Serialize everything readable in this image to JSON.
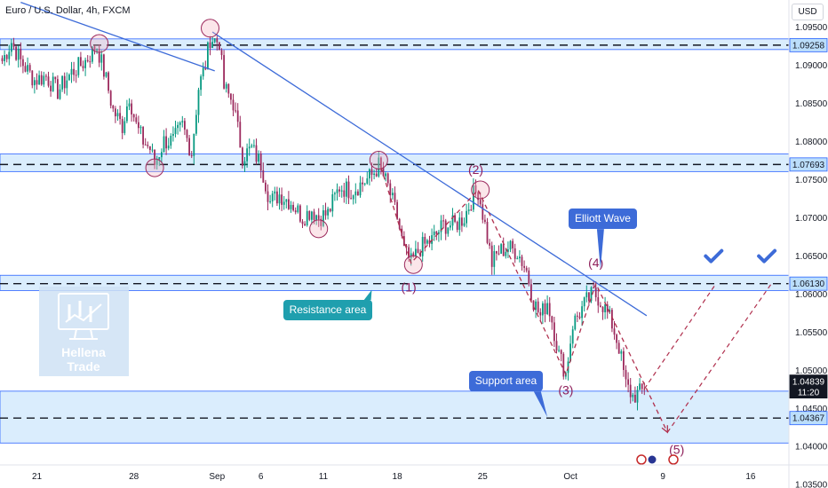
{
  "header": {
    "title": "Euro / U.S. Dollar, 4h, FXCM",
    "currency_button": "USD"
  },
  "watermark": {
    "line1": "Hellena",
    "line2": "Trade"
  },
  "colors": {
    "up": "#089981",
    "down": "#9c2a5d",
    "zone_fill": "#bbdefb",
    "zone_border": "#2962ff",
    "trendline": "#3d6bd8",
    "wave_path": "#b0304e",
    "wave_label": "#8e1f5a",
    "callout_bg_resistance": "#1f9fae",
    "callout_bg_wave": "#3d6bd8",
    "callout_bg_support": "#3d6bd8",
    "checkmark": "#3d6bd8",
    "price_tag_current": "#131722"
  },
  "annotations": {
    "resistance_label": "Resistance area",
    "support_label": "Support area",
    "elliott_label": "Elliott Wave",
    "waves": [
      "(1)",
      "(2)",
      "(3)",
      "(4)",
      "(5)"
    ]
  },
  "chart_data": {
    "type": "candlestick",
    "symbol": "Euro / U.S. Dollar",
    "timeframe": "4h",
    "source": "FXCM",
    "y_axis": {
      "range": [
        1.0345,
        1.0985
      ],
      "ticks": [
        "1.09500",
        "1.09000",
        "1.08500",
        "1.08000",
        "1.07500",
        "1.07000",
        "1.06500",
        "1.06000",
        "1.05500",
        "1.05000",
        "1.04500",
        "1.04000",
        "1.03500"
      ]
    },
    "x_axis": {
      "ticks": [
        {
          "label": "21",
          "bar": 15
        },
        {
          "label": "28",
          "bar": 57
        },
        {
          "label": "Sep",
          "bar": 93
        },
        {
          "label": "6",
          "bar": 112
        },
        {
          "label": "11",
          "bar": 139
        },
        {
          "label": "18",
          "bar": 171
        },
        {
          "label": "25",
          "bar": 208
        },
        {
          "label": "Oct",
          "bar": 246
        },
        {
          "label": "9",
          "bar": 286
        },
        {
          "label": "16",
          "bar": 324
        }
      ]
    },
    "price_tags": [
      {
        "label": "1.09258",
        "price": 1.09258
      },
      {
        "label": "1.07693",
        "price": 1.07693
      },
      {
        "label": "1.06130",
        "price": 1.0613
      },
      {
        "label": "1.04839",
        "sub": "11:20",
        "price": 1.04839,
        "current": true
      },
      {
        "label": "1.04367",
        "price": 1.04367
      }
    ],
    "zones": [
      {
        "low": 1.092,
        "high": 1.0934
      },
      {
        "low": 1.076,
        "high": 1.0783
      },
      {
        "low": 1.0604,
        "high": 1.0624
      },
      {
        "low": 1.0404,
        "high": 1.0472
      }
    ],
    "dashed_levels": [
      1.09258,
      1.07693,
      1.0613,
      1.04367
    ],
    "trendlines": [
      {
        "start": {
          "bar": 8,
          "price": 1.0982
        },
        "end": {
          "bar": 92,
          "price": 1.0892
        }
      },
      {
        "start": {
          "bar": 91,
          "price": 1.0943
        },
        "end": {
          "bar": 279,
          "price": 1.0571
        }
      }
    ],
    "circled_points": [
      {
        "bar": 42,
        "price": 1.0928
      },
      {
        "bar": 66,
        "price": 1.0765
      },
      {
        "bar": 90,
        "price": 1.0948
      },
      {
        "bar": 137,
        "price": 1.0685
      },
      {
        "bar": 163,
        "price": 1.0775
      },
      {
        "bar": 178,
        "price": 1.0638
      },
      {
        "bar": 207,
        "price": 1.0736
      }
    ],
    "wave_path": [
      {
        "bar": 164,
        "price": 1.0765
      },
      {
        "bar": 177,
        "price": 1.064
      },
      {
        "bar": 206,
        "price": 1.0736
      },
      {
        "bar": 244,
        "price": 1.0494
      },
      {
        "bar": 257,
        "price": 1.0613
      },
      {
        "bar": 288,
        "price": 1.0418
      }
    ],
    "projections": [
      {
        "from": {
          "bar": 278,
          "price": 1.0475
        },
        "to": {
          "bar": 309,
          "price": 1.0613
        }
      },
      {
        "from": {
          "bar": 288,
          "price": 1.0418
        },
        "to": {
          "bar": 333,
          "price": 1.0613
        }
      }
    ],
    "wave_labels": [
      {
        "text": "(1)",
        "bar": 176,
        "price": 1.0603
      },
      {
        "text": "(2)",
        "bar": 205,
        "price": 1.0757
      },
      {
        "text": "(3)",
        "bar": 244,
        "price": 1.0468
      },
      {
        "text": "(4)",
        "bar": 257,
        "price": 1.0635
      },
      {
        "text": "(5)",
        "bar": 292,
        "price": 1.039
      }
    ],
    "checkmarks": [
      {
        "bar": 308,
        "price": 1.0648
      },
      {
        "bar": 331,
        "price": 1.0648
      }
    ],
    "callouts": [
      {
        "key": "resistance_label",
        "bar": 141,
        "price": 1.0578,
        "pointer": {
          "bar": 160,
          "price": 1.0605
        }
      },
      {
        "key": "elliott_label",
        "bar": 260,
        "price": 1.0698,
        "pointer": {
          "bar": 259,
          "price": 1.0632
        }
      },
      {
        "key": "support_label",
        "bar": 218,
        "price": 1.0485,
        "pointer": {
          "bar": 236,
          "price": 1.0438
        }
      }
    ],
    "anchors": [
      {
        "bar": 0,
        "price": 1.0905
      },
      {
        "bar": 4,
        "price": 1.093
      },
      {
        "bar": 8,
        "price": 1.0905
      },
      {
        "bar": 14,
        "price": 1.088
      },
      {
        "bar": 19,
        "price": 1.0885
      },
      {
        "bar": 24,
        "price": 1.0865
      },
      {
        "bar": 30,
        "price": 1.089
      },
      {
        "bar": 36,
        "price": 1.0905
      },
      {
        "bar": 41,
        "price": 1.0925
      },
      {
        "bar": 45,
        "price": 1.088
      },
      {
        "bar": 48,
        "price": 1.084
      },
      {
        "bar": 52,
        "price": 1.082
      },
      {
        "bar": 55,
        "price": 1.086
      },
      {
        "bar": 58,
        "price": 1.082
      },
      {
        "bar": 61,
        "price": 1.08
      },
      {
        "bar": 64,
        "price": 1.079
      },
      {
        "bar": 66,
        "price": 1.077
      },
      {
        "bar": 70,
        "price": 1.08
      },
      {
        "bar": 74,
        "price": 1.08
      },
      {
        "bar": 78,
        "price": 1.082
      },
      {
        "bar": 82,
        "price": 1.0785
      },
      {
        "bar": 85,
        "price": 1.087
      },
      {
        "bar": 88,
        "price": 1.09
      },
      {
        "bar": 90,
        "price": 1.0935
      },
      {
        "bar": 94,
        "price": 1.093
      },
      {
        "bar": 96,
        "price": 1.087
      },
      {
        "bar": 100,
        "price": 1.085
      },
      {
        "bar": 104,
        "price": 1.078
      },
      {
        "bar": 108,
        "price": 1.079
      },
      {
        "bar": 112,
        "price": 1.077
      },
      {
        "bar": 116,
        "price": 1.072
      },
      {
        "bar": 120,
        "price": 1.073
      },
      {
        "bar": 125,
        "price": 1.072
      },
      {
        "bar": 130,
        "price": 1.07
      },
      {
        "bar": 134,
        "price": 1.071
      },
      {
        "bar": 137,
        "price": 1.07
      },
      {
        "bar": 141,
        "price": 1.0705
      },
      {
        "bar": 146,
        "price": 1.074
      },
      {
        "bar": 151,
        "price": 1.0735
      },
      {
        "bar": 156,
        "price": 1.0745
      },
      {
        "bar": 160,
        "price": 1.0755
      },
      {
        "bar": 163,
        "price": 1.0768
      },
      {
        "bar": 167,
        "price": 1.074
      },
      {
        "bar": 171,
        "price": 1.07
      },
      {
        "bar": 174,
        "price": 1.0655
      },
      {
        "bar": 177,
        "price": 1.064
      },
      {
        "bar": 181,
        "price": 1.066
      },
      {
        "bar": 186,
        "price": 1.067
      },
      {
        "bar": 191,
        "price": 1.069
      },
      {
        "bar": 196,
        "price": 1.069
      },
      {
        "bar": 200,
        "price": 1.07
      },
      {
        "bar": 204,
        "price": 1.073
      },
      {
        "bar": 206,
        "price": 1.0735
      },
      {
        "bar": 209,
        "price": 1.069
      },
      {
        "bar": 212,
        "price": 1.064
      },
      {
        "bar": 215,
        "price": 1.0655
      },
      {
        "bar": 219,
        "price": 1.066
      },
      {
        "bar": 223,
        "price": 1.0655
      },
      {
        "bar": 227,
        "price": 1.063
      },
      {
        "bar": 230,
        "price": 1.059
      },
      {
        "bar": 233,
        "price": 1.057
      },
      {
        "bar": 236,
        "price": 1.059
      },
      {
        "bar": 238,
        "price": 1.0565
      },
      {
        "bar": 241,
        "price": 1.052
      },
      {
        "bar": 244,
        "price": 1.0495
      },
      {
        "bar": 247,
        "price": 1.056
      },
      {
        "bar": 250,
        "price": 1.0575
      },
      {
        "bar": 253,
        "price": 1.059
      },
      {
        "bar": 256,
        "price": 1.06
      },
      {
        "bar": 258,
        "price": 1.0595
      },
      {
        "bar": 261,
        "price": 1.058
      },
      {
        "bar": 264,
        "price": 1.056
      },
      {
        "bar": 267,
        "price": 1.053
      },
      {
        "bar": 270,
        "price": 1.048
      },
      {
        "bar": 273,
        "price": 1.0465
      },
      {
        "bar": 276,
        "price": 1.047
      },
      {
        "bar": 278,
        "price": 1.0474
      }
    ]
  }
}
